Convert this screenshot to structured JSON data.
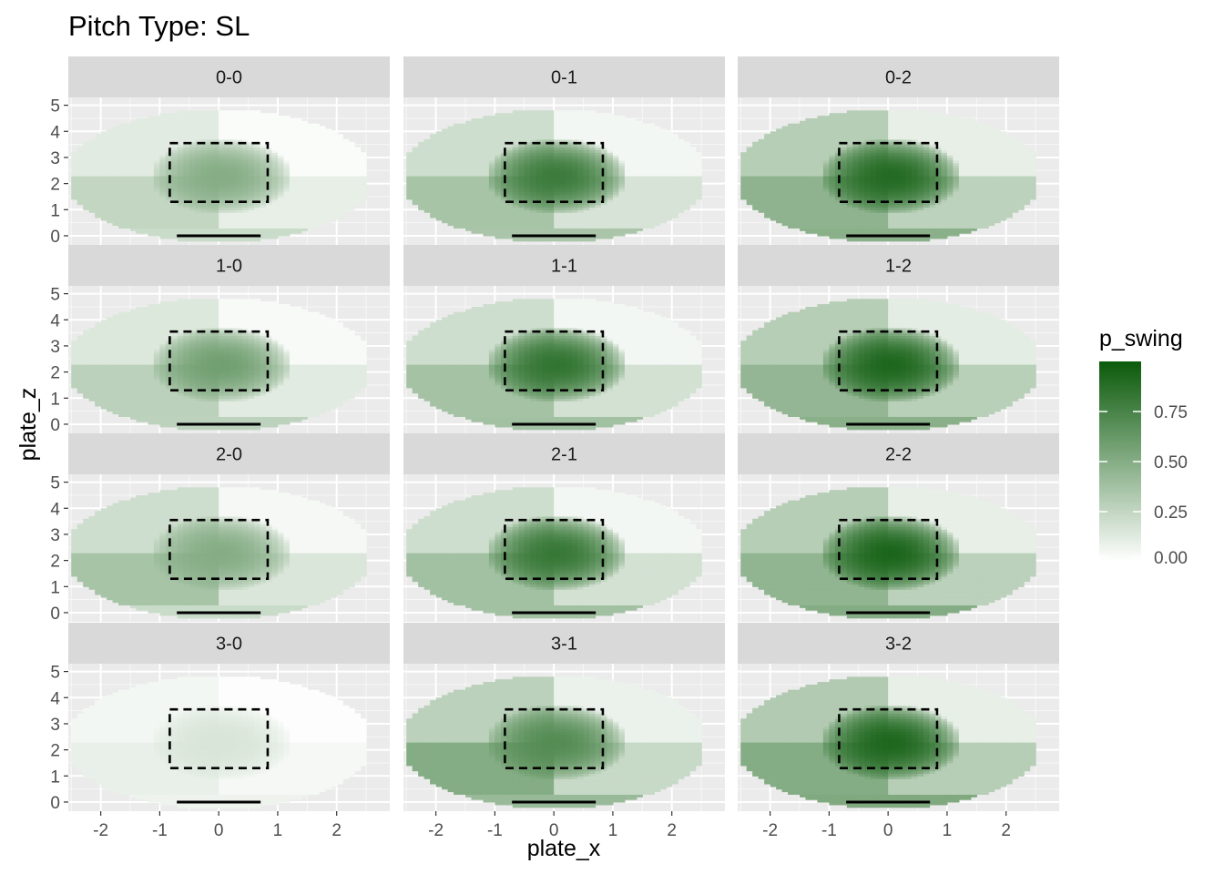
{
  "chart_data": {
    "type": "heatmap",
    "title": "Pitch Type: SL",
    "xlabel": "plate_x",
    "ylabel": "plate_z",
    "xlim": [
      -2.55,
      2.9
    ],
    "ylim": [
      -0.35,
      5.3
    ],
    "x_ticks": [
      -2,
      -1,
      0,
      1,
      2
    ],
    "x_tick_labels": [
      "-2",
      "-1",
      "0",
      "1",
      "2"
    ],
    "y_ticks": [
      0,
      1,
      2,
      3,
      4,
      5
    ],
    "y_tick_labels": [
      "0",
      "1",
      "2",
      "3",
      "4",
      "5"
    ],
    "grid": true,
    "facet_layout": "4 rows x 3 columns",
    "strike_zone": {
      "x": [
        -0.83,
        0.83
      ],
      "z": [
        1.3,
        3.55
      ],
      "style": "dashed"
    },
    "home_plate": {
      "x": [
        -0.71,
        0.71
      ],
      "z": 0
    },
    "legend": {
      "title": "p_swing",
      "position": "right",
      "range": [
        0,
        1
      ],
      "breaks": [
        0.0,
        0.25,
        0.5,
        0.75
      ],
      "labels": [
        "0.00",
        "0.25",
        "0.50",
        "0.75"
      ],
      "low_color": "#ffffff",
      "high_color": "#0b5a0b"
    },
    "panels": [
      {
        "count": "0-0",
        "zone_peak": 0.5,
        "quadrants_outside": {
          "upper_left": 0.12,
          "upper_right": 0.02,
          "lower_left": 0.25,
          "lower_right": 0.1
        },
        "bottom_edge": 0.22
      },
      {
        "count": "0-1",
        "zone_peak": 0.8,
        "quadrants_outside": {
          "upper_left": 0.2,
          "upper_right": 0.05,
          "lower_left": 0.36,
          "lower_right": 0.17
        },
        "bottom_edge": 0.35
      },
      {
        "count": "0-2",
        "zone_peak": 0.9,
        "quadrants_outside": {
          "upper_left": 0.3,
          "upper_right": 0.1,
          "lower_left": 0.46,
          "lower_right": 0.27
        },
        "bottom_edge": 0.48
      },
      {
        "count": "1-0",
        "zone_peak": 0.58,
        "quadrants_outside": {
          "upper_left": 0.14,
          "upper_right": 0.03,
          "lower_left": 0.28,
          "lower_right": 0.12
        },
        "bottom_edge": 0.27
      },
      {
        "count": "1-1",
        "zone_peak": 0.84,
        "quadrants_outside": {
          "upper_left": 0.2,
          "upper_right": 0.05,
          "lower_left": 0.37,
          "lower_right": 0.18
        },
        "bottom_edge": 0.38
      },
      {
        "count": "1-2",
        "zone_peak": 0.92,
        "quadrants_outside": {
          "upper_left": 0.3,
          "upper_right": 0.11,
          "lower_left": 0.44,
          "lower_right": 0.29
        },
        "bottom_edge": 0.48
      },
      {
        "count": "2-0",
        "zone_peak": 0.5,
        "quadrants_outside": {
          "upper_left": 0.2,
          "upper_right": 0.04,
          "lower_left": 0.36,
          "lower_right": 0.15
        },
        "bottom_edge": 0.22
      },
      {
        "count": "2-1",
        "zone_peak": 0.82,
        "quadrants_outside": {
          "upper_left": 0.2,
          "upper_right": 0.05,
          "lower_left": 0.38,
          "lower_right": 0.18
        },
        "bottom_edge": 0.38
      },
      {
        "count": "2-2",
        "zone_peak": 0.93,
        "quadrants_outside": {
          "upper_left": 0.3,
          "upper_right": 0.1,
          "lower_left": 0.45,
          "lower_right": 0.28
        },
        "bottom_edge": 0.5
      },
      {
        "count": "3-0",
        "zone_peak": 0.16,
        "quadrants_outside": {
          "upper_left": 0.05,
          "upper_right": 0.01,
          "lower_left": 0.09,
          "lower_right": 0.04
        },
        "bottom_edge": 0.07
      },
      {
        "count": "3-1",
        "zone_peak": 0.7,
        "quadrants_outside": {
          "upper_left": 0.28,
          "upper_right": 0.08,
          "lower_left": 0.5,
          "lower_right": 0.23
        },
        "bottom_edge": 0.42
      },
      {
        "count": "3-2",
        "zone_peak": 0.92,
        "quadrants_outside": {
          "upper_left": 0.32,
          "upper_right": 0.1,
          "lower_left": 0.5,
          "lower_right": 0.3
        },
        "bottom_edge": 0.52
      }
    ]
  }
}
